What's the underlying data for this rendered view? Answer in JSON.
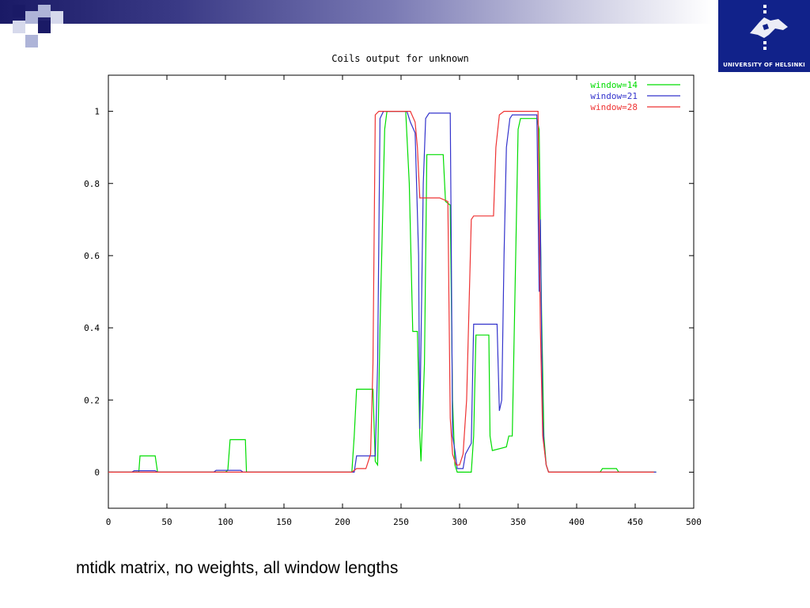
{
  "slide": {
    "caption": "mtidk matrix, no weights, all window lengths",
    "logo_text": "UNIVERSITY OF HELSINKI",
    "logo_icon": "helsinki-university-emblem",
    "accent_color": "#1a1a66"
  },
  "chart_data": {
    "type": "line",
    "title": "Coils output for unknown",
    "xlabel": "",
    "ylabel": "",
    "xlim": [
      0,
      500
    ],
    "ylim": [
      -0.1,
      1.1
    ],
    "x_ticks": [
      "0",
      "50",
      "100",
      "150",
      "200",
      "250",
      "300",
      "350",
      "400",
      "450",
      "500"
    ],
    "y_ticks": [
      "0",
      "0.2",
      "0.4",
      "0.6",
      "0.8",
      "1"
    ],
    "legend_position": "top-right",
    "grid": false,
    "series": [
      {
        "name": "window=14",
        "color": "#00dd00",
        "points": [
          [
            0,
            0
          ],
          [
            20,
            0
          ],
          [
            26,
            0
          ],
          [
            27,
            0.045
          ],
          [
            40,
            0.045
          ],
          [
            42,
            0
          ],
          [
            100,
            0
          ],
          [
            102,
            0.005
          ],
          [
            104,
            0.09
          ],
          [
            117,
            0.09
          ],
          [
            118,
            0
          ],
          [
            208,
            0
          ],
          [
            210,
            0.1
          ],
          [
            212,
            0.23
          ],
          [
            226,
            0.23
          ],
          [
            228,
            0.03
          ],
          [
            230,
            0.02
          ],
          [
            232,
            0.4
          ],
          [
            236,
            0.95
          ],
          [
            238,
            1.0
          ],
          [
            254,
            1.0
          ],
          [
            257,
            0.8
          ],
          [
            260,
            0.39
          ],
          [
            264,
            0.39
          ],
          [
            266,
            0.1
          ],
          [
            267,
            0.03
          ],
          [
            270,
            0.3
          ],
          [
            272,
            0.88
          ],
          [
            286,
            0.88
          ],
          [
            288,
            0.75
          ],
          [
            292,
            0.74
          ],
          [
            294,
            0.2
          ],
          [
            296,
            0.02
          ],
          [
            298,
            0
          ],
          [
            310,
            0
          ],
          [
            312,
            0.1
          ],
          [
            314,
            0.38
          ],
          [
            325,
            0.38
          ],
          [
            326,
            0.1
          ],
          [
            328,
            0.06
          ],
          [
            340,
            0.07
          ],
          [
            342,
            0.1
          ],
          [
            345,
            0.1
          ],
          [
            350,
            0.95
          ],
          [
            352,
            0.98
          ],
          [
            366,
            0.98
          ],
          [
            368,
            0.95
          ],
          [
            370,
            0.45
          ],
          [
            372,
            0.1
          ],
          [
            374,
            0.02
          ],
          [
            376,
            0
          ],
          [
            420,
            0
          ],
          [
            422,
            0.01
          ],
          [
            434,
            0.01
          ],
          [
            436,
            0
          ],
          [
            468,
            0
          ]
        ]
      },
      {
        "name": "window=21",
        "color": "#3333cc",
        "points": [
          [
            0,
            0
          ],
          [
            20,
            0
          ],
          [
            22,
            0.004
          ],
          [
            40,
            0.004
          ],
          [
            42,
            0
          ],
          [
            90,
            0
          ],
          [
            92,
            0.005
          ],
          [
            113,
            0.005
          ],
          [
            115,
            0
          ],
          [
            210,
            0
          ],
          [
            212,
            0.045
          ],
          [
            228,
            0.045
          ],
          [
            230,
            0.3
          ],
          [
            232,
            0.98
          ],
          [
            235,
            1.0
          ],
          [
            255,
            1.0
          ],
          [
            258,
            0.97
          ],
          [
            262,
            0.94
          ],
          [
            265,
            0.6
          ],
          [
            266,
            0.12
          ],
          [
            269,
            0.8
          ],
          [
            271,
            0.98
          ],
          [
            274,
            0.995
          ],
          [
            292,
            0.995
          ],
          [
            293,
            0.6
          ],
          [
            294,
            0.1
          ],
          [
            296,
            0.06
          ],
          [
            298,
            0.01
          ],
          [
            303,
            0.01
          ],
          [
            305,
            0.05
          ],
          [
            310,
            0.08
          ],
          [
            312,
            0.41
          ],
          [
            332,
            0.41
          ],
          [
            334,
            0.17
          ],
          [
            336,
            0.2
          ],
          [
            338,
            0.6
          ],
          [
            340,
            0.9
          ],
          [
            343,
            0.98
          ],
          [
            345,
            0.99
          ],
          [
            366,
            0.99
          ],
          [
            368,
            0.5
          ],
          [
            369,
            0.7
          ],
          [
            370,
            0.4
          ],
          [
            371,
            0.15
          ],
          [
            372,
            0.08
          ],
          [
            374,
            0.02
          ],
          [
            376,
            0
          ],
          [
            468,
            0
          ]
        ]
      },
      {
        "name": "window=28",
        "color": "#ee3333",
        "points": [
          [
            0,
            0
          ],
          [
            208,
            0
          ],
          [
            212,
            0.01
          ],
          [
            220,
            0.01
          ],
          [
            224,
            0.05
          ],
          [
            226,
            0.3
          ],
          [
            228,
            0.99
          ],
          [
            231,
            1.0
          ],
          [
            258,
            1.0
          ],
          [
            262,
            0.97
          ],
          [
            264,
            0.9
          ],
          [
            266,
            0.76
          ],
          [
            283,
            0.76
          ],
          [
            290,
            0.75
          ],
          [
            292,
            0.15
          ],
          [
            294,
            0.05
          ],
          [
            297,
            0.02
          ],
          [
            300,
            0.02
          ],
          [
            303,
            0.05
          ],
          [
            306,
            0.2
          ],
          [
            310,
            0.7
          ],
          [
            312,
            0.71
          ],
          [
            329,
            0.71
          ],
          [
            331,
            0.9
          ],
          [
            334,
            0.99
          ],
          [
            338,
            1.0
          ],
          [
            367,
            1.0
          ],
          [
            369,
            0.4
          ],
          [
            371,
            0.1
          ],
          [
            374,
            0.02
          ],
          [
            376,
            0
          ],
          [
            466,
            0
          ]
        ]
      }
    ]
  }
}
